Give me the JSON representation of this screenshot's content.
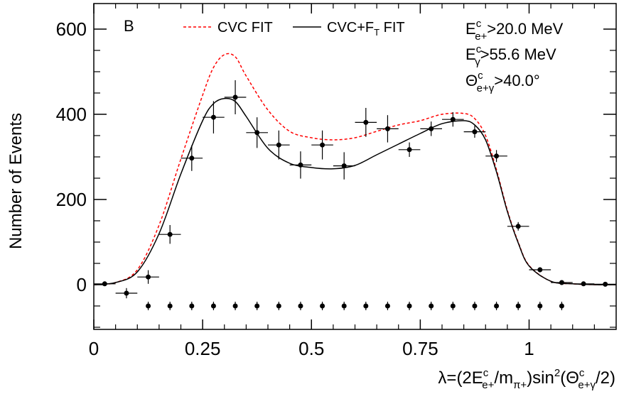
{
  "chart_data": {
    "type": "scatter",
    "panel_label": "B",
    "xlabel": "λ=(2E",
    "xlabel_parts": {
      "E_sup": "c",
      "E_sub": "e+",
      "mid": "/m",
      "m_sub": "π+",
      "sin": ")sin",
      "sin_sup": "2",
      "theta": "(Θ",
      "theta_sup": "c",
      "theta_sub": "e+γ",
      "end": "/2)"
    },
    "ylabel": "Number of Events",
    "xlim": [
      0,
      1.2
    ],
    "ylim": [
      -105,
      660
    ],
    "x_ticks": [
      0,
      0.25,
      0.5,
      0.75,
      1
    ],
    "x_tick_labels": [
      "0",
      "0.25",
      "0.5",
      "0.75",
      "1"
    ],
    "y_ticks": [
      0,
      200,
      400,
      600
    ],
    "y_tick_labels": [
      "0",
      "200",
      "400",
      "600"
    ],
    "legend": {
      "placement": "top-center",
      "entries": [
        {
          "label": "CVC FIT",
          "style": "dashed",
          "color": "#ff0000"
        },
        {
          "label": "CVC+F",
          "label_sub": "T",
          "label_end": " FIT",
          "style": "solid",
          "color": "#000000"
        }
      ]
    },
    "annotations": [
      {
        "base": "E",
        "sup": "c",
        "sub": "e+",
        "rest": ">20.0 MeV"
      },
      {
        "base": "E",
        "sup": "c",
        "sub": "γ",
        "rest": ">55.6 MeV"
      },
      {
        "base": "Θ",
        "sup": "c",
        "sub": "e+γ",
        "rest": ">40.0°"
      }
    ],
    "series": [
      {
        "name": "data",
        "kind": "points_with_errors",
        "x": [
          0.025,
          0.075,
          0.125,
          0.175,
          0.225,
          0.275,
          0.325,
          0.375,
          0.425,
          0.475,
          0.525,
          0.575,
          0.625,
          0.675,
          0.725,
          0.775,
          0.825,
          0.875,
          0.925,
          0.975,
          1.025,
          1.075,
          1.125,
          1.175
        ],
        "y": [
          2,
          -20,
          18,
          118,
          297,
          393,
          440,
          357,
          328,
          281,
          328,
          279,
          381,
          366,
          317,
          366,
          388,
          359,
          302,
          137,
          35,
          5,
          2,
          1
        ],
        "x_err": 0.025,
        "y_err": [
          4,
          12,
          16,
          22,
          30,
          38,
          40,
          36,
          34,
          32,
          34,
          32,
          34,
          32,
          17,
          17,
          17,
          14,
          14,
          10,
          6,
          3,
          2,
          1
        ]
      },
      {
        "name": "residual",
        "kind": "points_with_errors",
        "x": [
          0.125,
          0.175,
          0.225,
          0.275,
          0.325,
          0.375,
          0.425,
          0.475,
          0.525,
          0.575,
          0.625,
          0.675,
          0.725,
          0.775,
          0.825,
          0.875,
          0.925,
          0.975,
          1.025,
          1.075
        ],
        "y": -50,
        "y_err": 10
      },
      {
        "name": "CVC FIT",
        "kind": "line",
        "style": "dashed",
        "color": "#ff0000",
        "x": [
          0,
          0.05,
          0.1,
          0.15,
          0.2,
          0.25,
          0.275,
          0.3,
          0.325,
          0.35,
          0.4,
          0.45,
          0.5,
          0.55,
          0.6,
          0.65,
          0.7,
          0.75,
          0.8,
          0.85,
          0.875,
          0.9,
          0.925,
          0.95,
          0.975,
          1.0,
          1.05,
          1.1,
          1.15,
          1.2
        ],
        "y": [
          0,
          5,
          35,
          140,
          295,
          445,
          510,
          540,
          535,
          490,
          410,
          360,
          345,
          340,
          345,
          360,
          375,
          385,
          400,
          402,
          390,
          350,
          270,
          175,
          100,
          45,
          8,
          2,
          0,
          0
        ]
      },
      {
        "name": "CVC+F_T FIT",
        "kind": "line",
        "style": "solid",
        "color": "#000000",
        "x": [
          0,
          0.05,
          0.1,
          0.15,
          0.2,
          0.25,
          0.275,
          0.3,
          0.325,
          0.35,
          0.4,
          0.45,
          0.5,
          0.55,
          0.6,
          0.65,
          0.7,
          0.75,
          0.8,
          0.85,
          0.875,
          0.9,
          0.925,
          0.95,
          0.975,
          1.0,
          1.05,
          1.1,
          1.15,
          1.2
        ],
        "y": [
          0,
          5,
          30,
          120,
          260,
          385,
          425,
          437,
          430,
          395,
          320,
          285,
          275,
          272,
          280,
          305,
          330,
          355,
          378,
          385,
          375,
          340,
          265,
          172,
          98,
          44,
          8,
          2,
          0,
          0
        ]
      }
    ]
  }
}
